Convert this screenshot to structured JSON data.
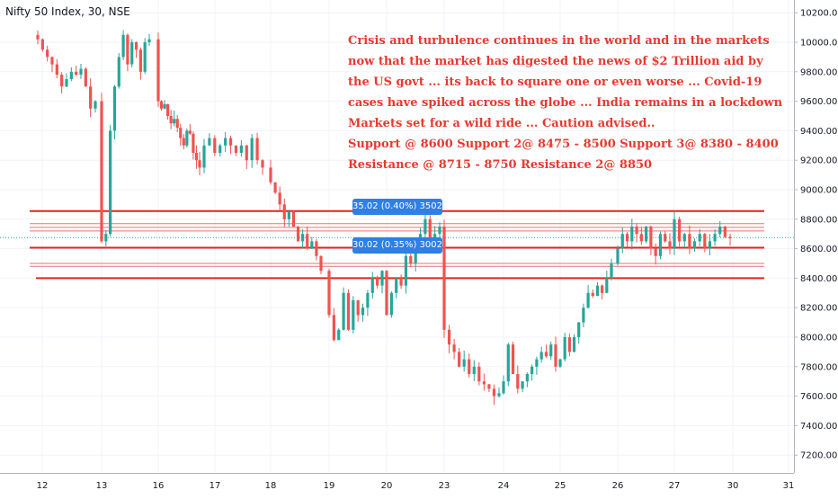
{
  "header": {
    "title": "Nifty 50 Index, 30, NSE"
  },
  "annotation_lines": [
    "Crisis and turbulence continues in the world and in the markets",
    "now that the market  has digested the news of $2 Trillion aid by",
    "the US govt ... its back to square one or even worse ... Covid-19",
    "cases have spiked across the globe ... India remains in a lockdown",
    "Markets set for a wild ride ... Caution advised..",
    "Support @ 8600  Support 2@ 8475 - 8500  Support 3@ 8380 - 8400",
    "Resistance @ 8715 - 8750  Resistance 2@ 8850"
  ],
  "measure_labels": [
    {
      "text": "35.02 (0.40%) 3502",
      "value": 35.02,
      "percent": 0.4
    },
    {
      "text": "30.02 (0.35%) 3002",
      "value": 30.02,
      "percent": 0.35
    }
  ],
  "colors": {
    "up": "#26a69a",
    "down": "#ef5350",
    "hline": "#e8221b",
    "hline_thin": "#e57373",
    "annotation": "#e8392f",
    "measure_box": "#2e7fe6",
    "last_price": "#26a69a"
  },
  "chart_data": {
    "type": "candlestick",
    "instrument": "Nifty 50 Index",
    "interval": "30",
    "exchange": "NSE",
    "x_tick_labels": [
      "12",
      "13",
      "16",
      "17",
      "18",
      "19",
      "20",
      "23",
      "24",
      "25",
      "26",
      "27",
      "30",
      "31"
    ],
    "y_tick_labels": [
      "10200.00",
      "10000.00",
      "9800.00",
      "9600.00",
      "9400.00",
      "9200.00",
      "9000.00",
      "8800.00",
      "8600.00",
      "8400.00",
      "8200.00",
      "8000.00",
      "7800.00",
      "7600.00",
      "7400.00",
      "7200.00"
    ],
    "ylim": [
      7100,
      10300
    ],
    "last_price": 8675,
    "horizontal_levels": [
      {
        "price": 8855,
        "style": "thick"
      },
      {
        "price": 8770,
        "style": "thin"
      },
      {
        "price": 8745,
        "style": "thin"
      },
      {
        "price": 8720,
        "style": "thin"
      },
      {
        "price": 8607,
        "style": "thick"
      },
      {
        "price": 8500,
        "style": "thin"
      },
      {
        "price": 8480,
        "style": "thin"
      },
      {
        "price": 8400,
        "style": "thick"
      }
    ],
    "sessions": [
      {
        "day": "12",
        "closes": [
          10020,
          9950,
          9900,
          9850,
          9780,
          9700,
          9750,
          9800,
          9780,
          9820,
          9700,
          9550,
          9600
        ]
      },
      {
        "day": "13",
        "closes": [
          8650,
          8700,
          9400,
          9700,
          9900,
          10050,
          9850,
          10000,
          9950,
          9800,
          10000,
          10020
        ]
      },
      {
        "day": "16",
        "closes": [
          9600,
          9550,
          9580,
          9500,
          9450,
          9480,
          9420,
          9350,
          9300,
          9400,
          9380,
          9250,
          9200,
          9150
        ]
      },
      {
        "day": "17",
        "closes": [
          9300,
          9350,
          9250,
          9300,
          9350,
          9300,
          9250,
          9300,
          9200,
          9350,
          9200,
          9150
        ]
      },
      {
        "day": "18",
        "closes": [
          9050,
          8980,
          8900,
          8800,
          8850,
          8750,
          8650,
          8700,
          8600,
          8650,
          8550,
          8450
        ]
      },
      {
        "day": "19",
        "closes": [
          8150,
          7980,
          8050,
          8300,
          8050,
          8250,
          8150,
          8200,
          8300,
          8400,
          8350,
          8450
        ]
      },
      {
        "day": "20",
        "closes": [
          8150,
          8300,
          8400,
          8350,
          8550,
          8500,
          8600,
          8700,
          8800,
          8650,
          8700,
          8750
        ]
      },
      {
        "day": "23",
        "closes": [
          8050,
          7950,
          7900,
          7800,
          7850,
          7750,
          7800,
          7700,
          7680,
          7650,
          7600,
          7620
        ]
      },
      {
        "day": "24",
        "closes": [
          7700,
          7950,
          7750,
          7650,
          7700,
          7750,
          7800,
          7850,
          7900,
          7870,
          7950,
          7800
        ]
      },
      {
        "day": "25",
        "closes": [
          7850,
          8000,
          7900,
          8000,
          8100,
          8200,
          8300,
          8280,
          8350,
          8300,
          8400,
          8500
        ]
      },
      {
        "day": "26",
        "closes": [
          8600,
          8700,
          8650,
          8750,
          8700,
          8650,
          8750,
          8600,
          8550,
          8700,
          8650,
          8600
        ]
      },
      {
        "day": "27",
        "closes": [
          8800,
          8650,
          8700,
          8600,
          8650,
          8700,
          8600,
          8650,
          8700,
          8750,
          8680,
          8675
        ]
      }
    ]
  }
}
